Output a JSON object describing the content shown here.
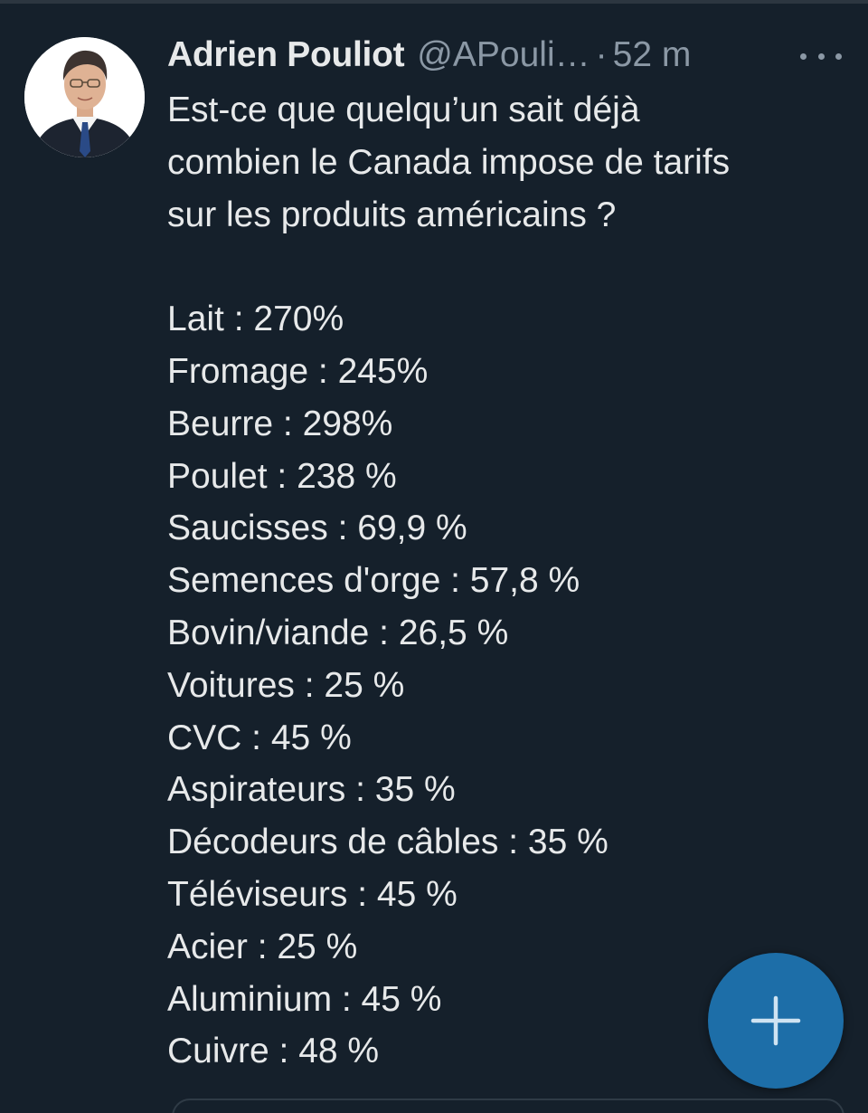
{
  "tweet": {
    "author_name": "Adrien Pouliot",
    "author_handle": "@APouli…",
    "separator": "·",
    "time": "52 m",
    "intro_lines": [
      "Est-ce que quelqu’un sait déjà",
      "combien le Canada impose de tarifs",
      "sur les produits américains ?"
    ],
    "tariffs": [
      "Lait : 270%",
      "Fromage : 245%",
      "Beurre : 298%",
      "Poulet : 238 %",
      "Saucisses : 69,9 %",
      "Semences d'orge : 57,8 %",
      "Bovin/viande : 26,5 %",
      "Voitures : 25 %",
      "CVC : 45 %",
      "Aspirateurs : 35 %",
      "Décodeurs de câbles : 35 %",
      "Téléviseurs : 45 %",
      "Acier : 25 %",
      "Aluminium : 45 %",
      "Cuivre : 48 %"
    ]
  },
  "icons": {
    "more": "more-horizontal-icon",
    "compose": "plus-icon"
  },
  "colors": {
    "background": "#15202b",
    "text": "#e7e9ea",
    "secondary_text": "#8b98a5",
    "fab": "#1d6ea8"
  }
}
